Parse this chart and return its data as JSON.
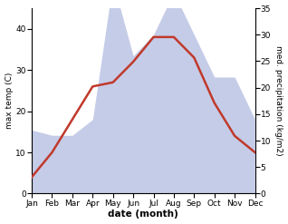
{
  "months": [
    "Jan",
    "Feb",
    "Mar",
    "Apr",
    "May",
    "Jun",
    "Jul",
    "Aug",
    "Sep",
    "Oct",
    "Nov",
    "Dec"
  ],
  "temp": [
    4,
    10,
    18,
    26,
    27,
    32,
    38,
    38,
    33,
    22,
    14,
    10
  ],
  "precip": [
    12,
    11,
    11,
    14,
    40,
    26,
    30,
    38,
    30,
    22,
    22,
    14
  ],
  "temp_color": "#c0392b",
  "precip_fill_color": "#c5cce8",
  "temp_ylim": [
    0,
    45
  ],
  "precip_ylim": [
    0,
    35
  ],
  "ylabel_left": "max temp (C)",
  "ylabel_right": "med. precipitation (kg/m2)",
  "xlabel": "date (month)",
  "temp_yticks": [
    0,
    10,
    20,
    30,
    40
  ],
  "precip_yticks": [
    0,
    5,
    10,
    15,
    20,
    25,
    30,
    35
  ],
  "figsize": [
    3.18,
    2.47
  ],
  "dpi": 100
}
